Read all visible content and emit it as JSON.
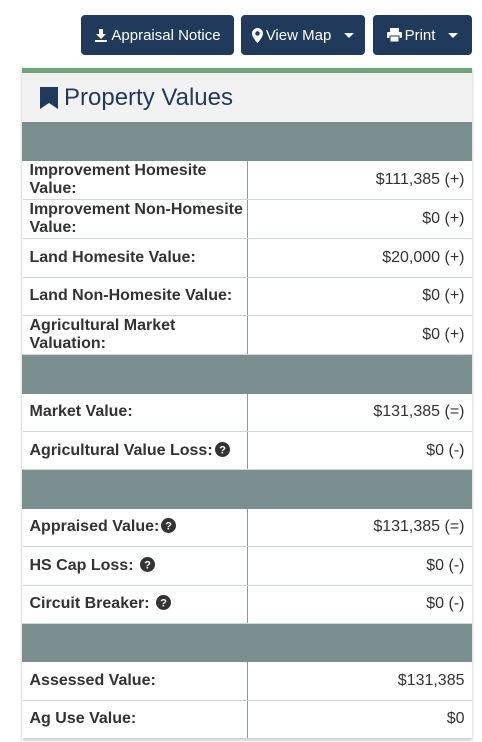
{
  "toolbar": {
    "appraisal_notice": "Appraisal Notice",
    "view_map": "View Map",
    "print": "Print"
  },
  "panel": {
    "title": "Property Values"
  },
  "rows": {
    "improvement_homesite": {
      "label": "Improvement Homesite Value:",
      "value": "$111,385 (+)"
    },
    "improvement_non_homesite": {
      "label": "Improvement Non-Homesite Value:",
      "value": "$0 (+)"
    },
    "land_homesite": {
      "label": "Land Homesite Value:",
      "value": "$20,000 (+)"
    },
    "land_non_homesite": {
      "label": "Land Non-Homesite Value:",
      "value": "$0 (+)"
    },
    "ag_market_valuation": {
      "label": "Agricultural Market Valuation:",
      "value": "$0 (+)"
    },
    "market_value": {
      "label": "Market Value:",
      "value": "$131,385 (=)"
    },
    "ag_value_loss": {
      "label": "Agricultural Value Loss:",
      "value": "$0 (-)"
    },
    "appraised_value": {
      "label": "Appraised Value:",
      "value": "$131,385 (=)"
    },
    "hs_cap_loss": {
      "label": "HS Cap Loss:",
      "value": "$0 (-)"
    },
    "circuit_breaker": {
      "label": "Circuit Breaker:",
      "value": "$0 (-)"
    },
    "assessed_value": {
      "label": "Assessed Value:",
      "value": "$131,385"
    },
    "ag_use_value": {
      "label": "Ag Use Value:",
      "value": "$0"
    }
  },
  "icons": {
    "appraisal": "download-icon",
    "map": "map-marker-icon",
    "print": "print-icon",
    "title": "bookmark-icon",
    "help": "question-circle-icon"
  },
  "colors": {
    "button_bg": "#1f3a5a",
    "panel_accent": "#6fa57a",
    "separator": "#7a8f8f",
    "title_text": "#1f3a5a"
  }
}
